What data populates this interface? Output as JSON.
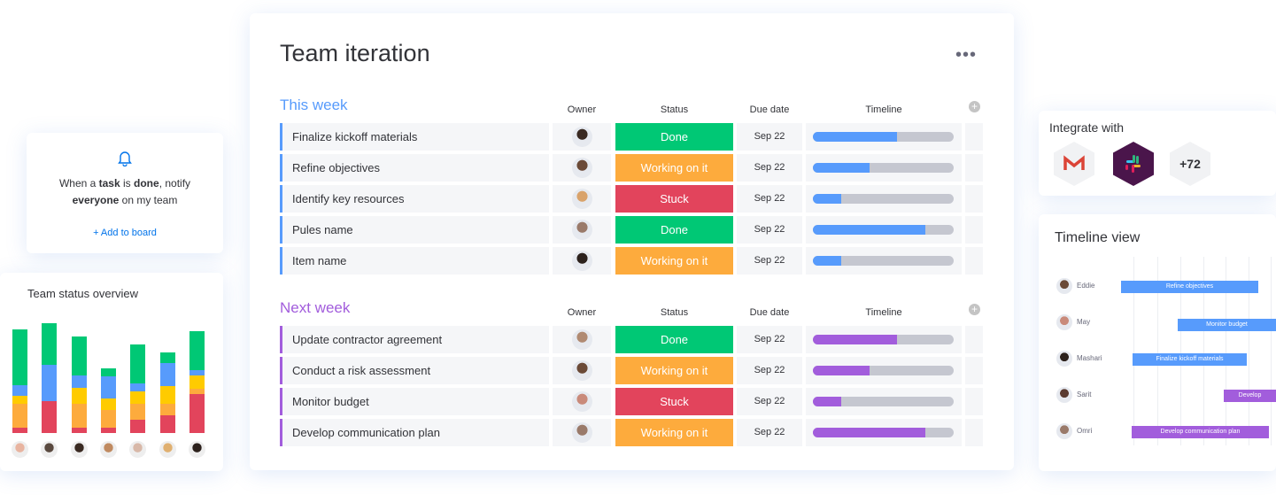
{
  "main": {
    "title": "Team iteration",
    "menu_icon": "more-horizontal-icon",
    "headers": {
      "owner": "Owner",
      "status": "Status",
      "due": "Due date",
      "timeline": "Timeline"
    },
    "groups": [
      {
        "title": "This week",
        "color": "#579bfc",
        "rows": [
          {
            "name": "Finalize kickoff materials",
            "status": "Done",
            "status_color": "#00c875",
            "due": "Sep 22",
            "progress": 0.6,
            "avatar": "#3a2a22"
          },
          {
            "name": "Refine objectives",
            "status": "Working on it",
            "status_color": "#fdab3d",
            "due": "Sep 22",
            "progress": 0.4,
            "avatar": "#6b4a37"
          },
          {
            "name": "Identify key resources",
            "status": "Stuck",
            "status_color": "#e2445c",
            "due": "Sep 22",
            "progress": 0.2,
            "avatar": "#d9a36b"
          },
          {
            "name": "Pules name",
            "status": "Done",
            "status_color": "#00c875",
            "due": "Sep 22",
            "progress": 0.8,
            "avatar": "#9a7a6a"
          },
          {
            "name": "Item name",
            "status": "Working on it",
            "status_color": "#fdab3d",
            "due": "Sep 22",
            "progress": 0.2,
            "avatar": "#2c211c"
          }
        ]
      },
      {
        "title": "Next week",
        "color": "#a25ddc",
        "rows": [
          {
            "name": "Update contractor agreement",
            "status": "Done",
            "status_color": "#00c875",
            "due": "Sep 22",
            "progress": 0.6,
            "avatar": "#b08a72"
          },
          {
            "name": "Conduct a risk assessment",
            "status": "Working on it",
            "status_color": "#fdab3d",
            "due": "Sep 22",
            "progress": 0.4,
            "avatar": "#6b4a37"
          },
          {
            "name": "Monitor budget",
            "status": "Stuck",
            "status_color": "#e2445c",
            "due": "Sep 22",
            "progress": 0.2,
            "avatar": "#c98a7a"
          },
          {
            "name": "Develop communication plan",
            "status": "Working on it",
            "status_color": "#fdab3d",
            "due": "Sep 22",
            "progress": 0.8,
            "avatar": "#9a7a6a"
          }
        ]
      }
    ]
  },
  "notify": {
    "icon": "bell-icon",
    "pre": "When a ",
    "task": "task",
    "mid": " is ",
    "done": "done",
    "post": ", notify",
    "everyone": "everyone",
    "tail": " on my team",
    "add": "+ Add to board"
  },
  "status_overview": {
    "title": "Team status overview",
    "chart_data": {
      "type": "bar",
      "stacked": true,
      "colors": {
        "stuck": "#e2445c",
        "working": "#fdab3d",
        "pending": "#ffcb00",
        "review": "#579bfc",
        "done": "#00c875"
      },
      "bars": [
        {
          "stuck": 6,
          "working": 27,
          "pending": 9,
          "review": 12,
          "done": 63
        },
        {
          "stuck": 36,
          "working": 0,
          "pending": 0,
          "review": 41,
          "done": 47
        },
        {
          "stuck": 6,
          "working": 27,
          "pending": 18,
          "review": 14,
          "done": 44
        },
        {
          "stuck": 6,
          "working": 20,
          "pending": 13,
          "review": 25,
          "done": 9
        },
        {
          "stuck": 15,
          "working": 18,
          "pending": 14,
          "review": 9,
          "done": 44
        },
        {
          "stuck": 20,
          "working": 13,
          "pending": 20,
          "review": 26,
          "done": 12
        },
        {
          "stuck": 44,
          "working": 6,
          "pending": 15,
          "review": 6,
          "done": 44
        }
      ],
      "avatars": [
        "#e8b4a0",
        "#5a4a40",
        "#3a2a22",
        "#c08a60",
        "#d8b8a8",
        "#e0b070",
        "#2c211c"
      ]
    }
  },
  "integrate": {
    "title": "Integrate with",
    "apps": [
      "gmail-icon",
      "slack-icon"
    ],
    "more": "+72"
  },
  "timeline_view": {
    "title": "Timeline view",
    "rows": [
      {
        "person": "Eddie",
        "task": "Refine objectives",
        "color": "#579bfc",
        "avatar": "#6b4a37"
      },
      {
        "person": "May",
        "task": "Monitor budget",
        "color": "#579bfc",
        "avatar": "#c98a7a"
      },
      {
        "person": "Mashari",
        "task": "Finalize kickoff materials",
        "color": "#579bfc",
        "avatar": "#2c211c"
      },
      {
        "person": "Sarit",
        "task": "Develop",
        "color": "#a25ddc",
        "avatar": "#5a3a30"
      },
      {
        "person": "Omri",
        "task": "Develop communication plan",
        "color": "#a25ddc",
        "avatar": "#9a7a6a"
      }
    ]
  }
}
